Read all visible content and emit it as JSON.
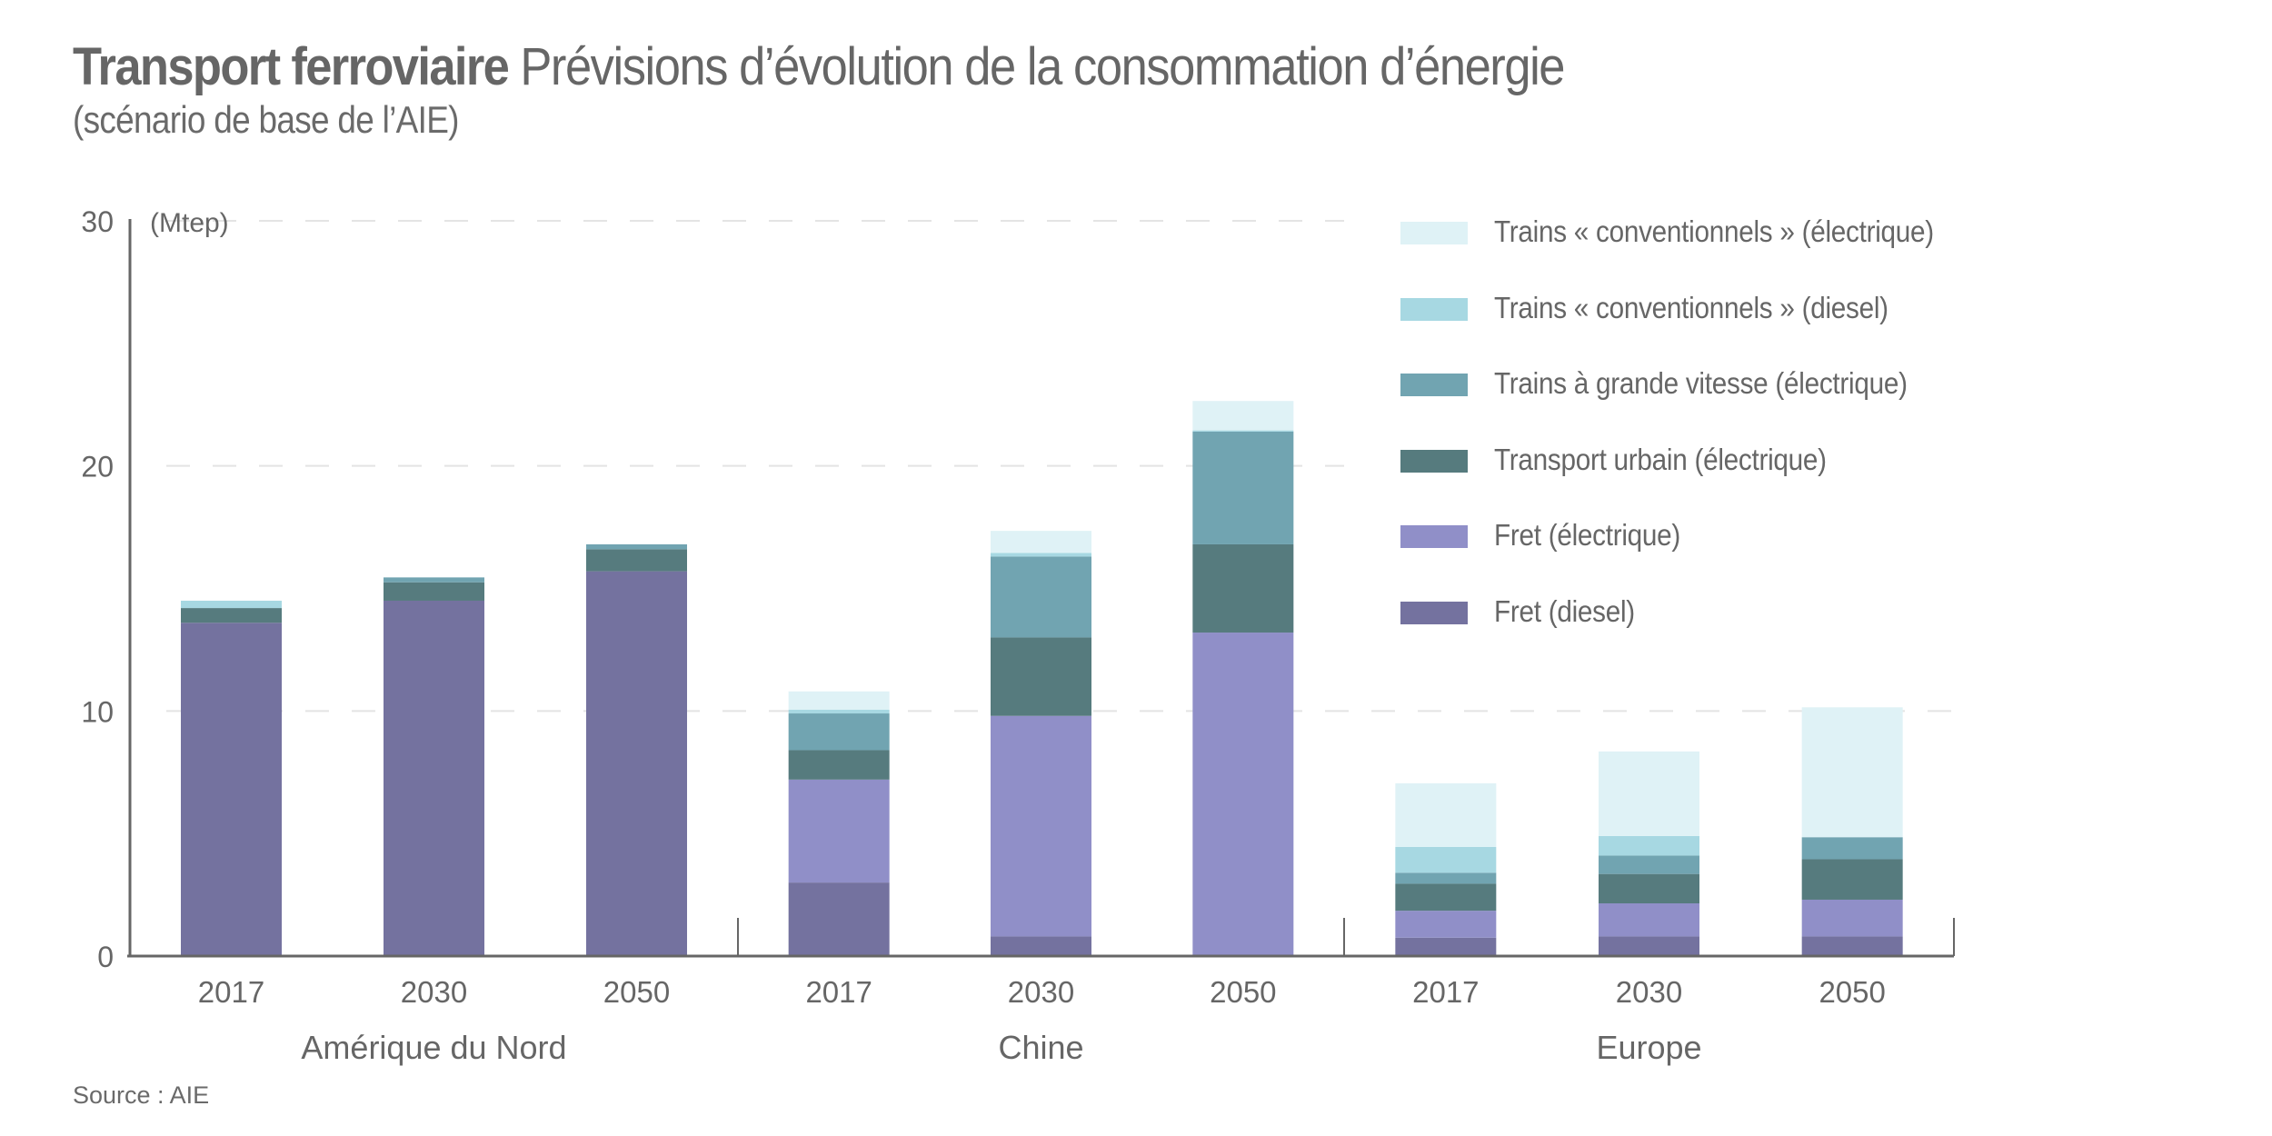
{
  "header": {
    "title_bold": "Transport ferroviaire",
    "title_light": "Prévisions d’évolution de la consommation d’énergie",
    "subtitle": "(scénario de base de l’AIE)"
  },
  "footer": {
    "source": "Source : AIE"
  },
  "chart_data": {
    "type": "bar",
    "stacked": true,
    "title": "Transport ferroviaire Prévisions d’évolution de la consommation d’énergie",
    "subtitle": "(scénario de base de l’AIE)",
    "xlabel": "",
    "ylabel": "(Mtep)",
    "ylim": [
      0,
      30
    ],
    "yticks": [
      0,
      10,
      20,
      30
    ],
    "grid": "horizontal-dashed",
    "legend_position": "top-right",
    "groups": [
      {
        "name": "Amérique du Nord",
        "categories": [
          "2017",
          "2030",
          "2050"
        ]
      },
      {
        "name": "Chine",
        "categories": [
          "2017",
          "2030",
          "2050"
        ]
      },
      {
        "name": "Europe",
        "categories": [
          "2017",
          "2030",
          "2050"
        ]
      }
    ],
    "categories": [
      "Amérique du Nord 2017",
      "Amérique du Nord 2030",
      "Amérique du Nord 2050",
      "Chine 2017",
      "Chine 2030",
      "Chine 2050",
      "Europe 2017",
      "Europe 2030",
      "Europe 2050"
    ],
    "series": [
      {
        "name": "Fret (diesel)",
        "color": "#74729f",
        "values": [
          13.6,
          14.5,
          15.7,
          3.0,
          0.8,
          0.0,
          0.75,
          0.8,
          0.8
        ]
      },
      {
        "name": "Fret (électrique)",
        "color": "#908fc8",
        "values": [
          0.0,
          0.0,
          0.0,
          4.2,
          9.0,
          13.2,
          1.1,
          1.35,
          1.5
        ]
      },
      {
        "name": "Transport urbain (électrique)",
        "color": "#567b7e",
        "values": [
          0.6,
          0.75,
          0.9,
          1.2,
          3.2,
          3.6,
          1.1,
          1.2,
          1.65
        ]
      },
      {
        "name": "Trains à grande vitesse (électrique)",
        "color": "#71a4b1",
        "values": [
          0.0,
          0.2,
          0.2,
          1.5,
          3.3,
          4.6,
          0.45,
          0.75,
          0.9
        ]
      },
      {
        "name": "Trains « conventionnels » (diesel)",
        "color": "#a7d8e2",
        "values": [
          0.3,
          0.0,
          0.0,
          0.15,
          0.15,
          0.05,
          1.05,
          0.8,
          0.0
        ]
      },
      {
        "name": "Trains « conventionnels » (électrique)",
        "color": "#dff2f6",
        "values": [
          0.0,
          0.0,
          0.0,
          0.75,
          0.9,
          1.2,
          2.6,
          3.45,
          5.3
        ]
      }
    ],
    "legend_order": [
      "Trains « conventionnels » (électrique)",
      "Trains « conventionnels » (diesel)",
      "Trains à grande vitesse (électrique)",
      "Transport urbain (électrique)",
      "Fret (électrique)",
      "Fret (diesel)"
    ]
  },
  "colors": {
    "text": "#666666",
    "axis": "#666666",
    "grid": "#e4e4e4"
  }
}
